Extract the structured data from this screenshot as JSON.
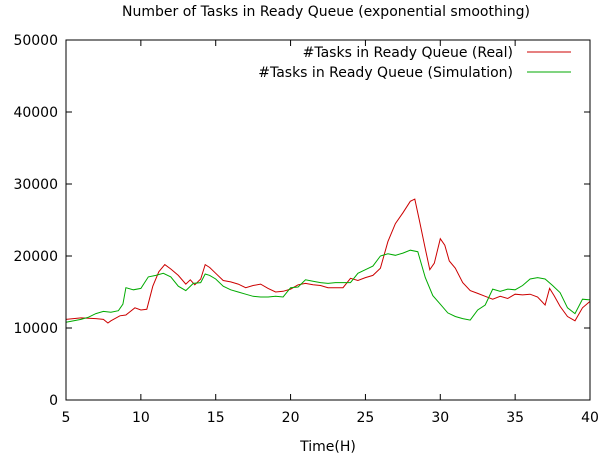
{
  "chart_data": {
    "type": "line",
    "title": "Number of Tasks in Ready Queue (exponential smoothing)",
    "xlabel": "Time(H)",
    "ylabel": "",
    "xlim": [
      5,
      40
    ],
    "ylim": [
      0,
      50000
    ],
    "xticks": [
      5,
      10,
      15,
      20,
      25,
      30,
      35,
      40
    ],
    "yticks": [
      0,
      10000,
      20000,
      30000,
      40000,
      50000
    ],
    "grid": false,
    "legend_position": "top-right",
    "series": [
      {
        "name": "#Tasks in Ready Queue (Real)",
        "color": "#cc0000",
        "x": [
          5.0,
          6.0,
          7.0,
          7.5,
          7.8,
          8.0,
          8.6,
          9.0,
          9.6,
          10.0,
          10.4,
          10.8,
          11.2,
          11.6,
          12.0,
          12.5,
          13.0,
          13.3,
          13.6,
          14.0,
          14.3,
          14.6,
          15.0,
          15.5,
          16.0,
          16.5,
          17.0,
          17.5,
          18.0,
          18.5,
          19.0,
          19.5,
          20.0,
          20.5,
          21.0,
          21.5,
          22.0,
          22.5,
          23.0,
          23.5,
          24.0,
          24.5,
          25.0,
          25.5,
          26.0,
          26.5,
          27.0,
          27.5,
          28.0,
          28.3,
          28.6,
          29.0,
          29.3,
          29.6,
          30.0,
          30.3,
          30.6,
          31.0,
          31.5,
          32.0,
          32.5,
          33.0,
          33.5,
          34.0,
          34.5,
          35.0,
          35.5,
          36.0,
          36.5,
          37.0,
          37.3,
          37.6,
          38.0,
          38.5,
          39.0,
          39.5,
          40.0
        ],
        "values": [
          11200,
          11400,
          11300,
          11200,
          10700,
          11000,
          11700,
          11800,
          12800,
          12500,
          12600,
          15800,
          17800,
          18800,
          18200,
          17300,
          16100,
          16700,
          16000,
          16800,
          18800,
          18400,
          17600,
          16600,
          16400,
          16100,
          15600,
          15900,
          16100,
          15500,
          15000,
          15100,
          15400,
          16000,
          16200,
          16000,
          15900,
          15600,
          15600,
          15600,
          16900,
          16600,
          17000,
          17300,
          18300,
          22000,
          24500,
          26000,
          27600,
          27900,
          25000,
          21000,
          18100,
          19000,
          22400,
          21500,
          19300,
          18300,
          16300,
          15200,
          14800,
          14400,
          14000,
          14400,
          14100,
          14700,
          14600,
          14700,
          14300,
          13200,
          15500,
          14500,
          13000,
          11600,
          11000,
          12800,
          13700
        ]
      },
      {
        "name": "#Tasks in Ready Queue (Simulation)",
        "color": "#00aa00",
        "x": [
          5.0,
          6.0,
          6.5,
          7.0,
          7.5,
          8.0,
          8.5,
          8.8,
          9.0,
          9.5,
          10.0,
          10.5,
          11.0,
          11.5,
          12.0,
          12.5,
          13.0,
          13.5,
          14.0,
          14.3,
          14.6,
          15.0,
          15.5,
          16.0,
          16.5,
          17.0,
          17.5,
          18.0,
          18.5,
          19.0,
          19.5,
          20.0,
          20.5,
          21.0,
          21.5,
          22.0,
          22.5,
          23.0,
          23.5,
          24.0,
          24.5,
          25.0,
          25.5,
          26.0,
          26.5,
          27.0,
          27.5,
          28.0,
          28.5,
          29.0,
          29.5,
          30.0,
          30.5,
          31.0,
          31.5,
          32.0,
          32.5,
          33.0,
          33.5,
          34.0,
          34.5,
          35.0,
          35.5,
          36.0,
          36.5,
          37.0,
          37.5,
          38.0,
          38.5,
          39.0,
          39.5,
          40.0
        ],
        "values": [
          10800,
          11200,
          11500,
          12000,
          12300,
          12200,
          12400,
          13300,
          15600,
          15300,
          15500,
          17100,
          17300,
          17600,
          17100,
          15800,
          15200,
          16200,
          16300,
          17500,
          17300,
          16800,
          15800,
          15300,
          15000,
          14700,
          14400,
          14300,
          14300,
          14400,
          14300,
          15600,
          15700,
          16700,
          16500,
          16300,
          16200,
          16300,
          16300,
          16300,
          17600,
          18100,
          18600,
          20000,
          20300,
          20100,
          20400,
          20800,
          20600,
          17000,
          14500,
          13300,
          12100,
          11600,
          11300,
          11100,
          12500,
          13200,
          15400,
          15100,
          15400,
          15300,
          15900,
          16800,
          17000,
          16800,
          15900,
          14900,
          12800,
          12000,
          14000,
          13900
        ]
      }
    ]
  }
}
